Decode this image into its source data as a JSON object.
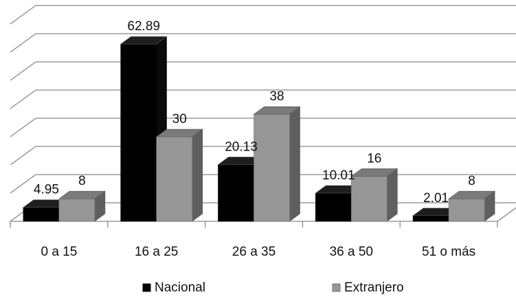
{
  "chart_data": {
    "type": "bar",
    "style": "3d-clustered-column",
    "categories": [
      "0 a 15",
      "16 a 25",
      "26 a 35",
      "36 a 50",
      "51 o más"
    ],
    "series": [
      {
        "name": "Nacional",
        "values": [
          4.95,
          62.89,
          20.13,
          10.01,
          2.01
        ],
        "color": "#000000",
        "label_text": [
          "4.95",
          "62.89",
          "20.13",
          "10.01",
          "2.01"
        ]
      },
      {
        "name": "Extranjero",
        "values": [
          8,
          30,
          38,
          16,
          8
        ],
        "color": "#969696",
        "label_text": [
          "8",
          "30",
          "38",
          "16",
          "8"
        ]
      }
    ],
    "ylim": [
      0,
      70
    ],
    "grid": true,
    "legend_position": "bottom"
  }
}
